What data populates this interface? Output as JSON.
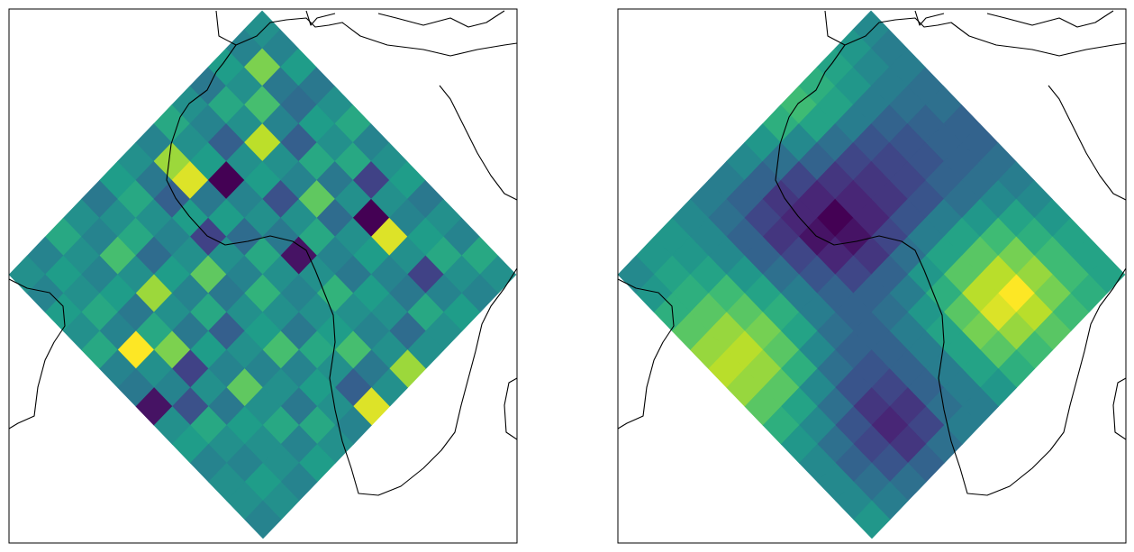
{
  "chart_data": [
    {
      "type": "heatmap",
      "colormap": "viridis",
      "values": [
        [
          0.5,
          0.45,
          0.55,
          0.4,
          0.5,
          0.6,
          0.45,
          0.5,
          0.55,
          0.4,
          0.5,
          0.45,
          0.6,
          0.5
        ],
        [
          0.45,
          0.8,
          0.4,
          0.35,
          0.55,
          0.5,
          0.6,
          0.2,
          0.5,
          0.45,
          0.55,
          0.6,
          0.5,
          0.45
        ],
        [
          0.55,
          0.5,
          0.7,
          0.45,
          0.3,
          0.6,
          0.4,
          0.5,
          0.0,
          0.95,
          0.5,
          0.2,
          0.45,
          0.55
        ],
        [
          0.4,
          0.6,
          0.5,
          0.9,
          0.5,
          0.45,
          0.75,
          0.35,
          0.5,
          0.55,
          0.45,
          0.4,
          0.6,
          0.5
        ],
        [
          0.5,
          0.45,
          0.3,
          0.5,
          0.55,
          0.25,
          0.5,
          0.6,
          0.45,
          0.4,
          0.55,
          0.5,
          0.35,
          0.5
        ],
        [
          0.6,
          0.5,
          0.55,
          0.0,
          0.45,
          0.5,
          0.4,
          0.05,
          0.5,
          0.65,
          0.5,
          0.45,
          0.5,
          0.85
        ],
        [
          0.45,
          0.85,
          0.95,
          0.4,
          0.55,
          0.35,
          0.6,
          0.5,
          0.45,
          0.5,
          0.55,
          0.7,
          0.4,
          0.5
        ],
        [
          0.5,
          0.4,
          0.3,
          0.55,
          0.2,
          0.5,
          0.45,
          0.65,
          0.5,
          0.4,
          0.6,
          0.5,
          0.3,
          0.95
        ],
        [
          0.55,
          0.6,
          0.5,
          0.45,
          0.5,
          0.75,
          0.4,
          0.5,
          0.55,
          0.7,
          0.45,
          0.55,
          0.5,
          0.45
        ],
        [
          0.4,
          0.5,
          0.6,
          0.35,
          0.55,
          0.45,
          0.6,
          0.3,
          0.5,
          0.45,
          0.5,
          0.4,
          0.6,
          0.5
        ],
        [
          0.5,
          0.45,
          0.7,
          0.5,
          0.85,
          0.5,
          0.4,
          0.55,
          0.45,
          0.75,
          0.5,
          0.6,
          0.45,
          0.55
        ],
        [
          0.6,
          0.5,
          0.45,
          0.55,
          0.4,
          0.6,
          0.8,
          0.2,
          0.5,
          0.4,
          0.55,
          0.5,
          0.5,
          0.45
        ],
        [
          0.45,
          0.55,
          0.5,
          0.6,
          0.45,
          1.0,
          0.5,
          0.45,
          0.25,
          0.6,
          0.5,
          0.45,
          0.55,
          0.5
        ],
        [
          0.5,
          0.45,
          0.55,
          0.5,
          0.6,
          0.45,
          0.4,
          0.05,
          0.5,
          0.55,
          0.45,
          0.5,
          0.5,
          0.45
        ]
      ]
    },
    {
      "type": "heatmap",
      "colormap": "viridis",
      "values": [
        [
          0.5,
          0.45,
          0.45,
          0.4,
          0.4,
          0.35,
          0.35,
          0.4,
          0.45,
          0.5,
          0.55,
          0.6,
          0.6,
          0.6
        ],
        [
          0.55,
          0.5,
          0.45,
          0.4,
          0.35,
          0.35,
          0.35,
          0.4,
          0.5,
          0.6,
          0.65,
          0.7,
          0.7,
          0.65
        ],
        [
          0.6,
          0.55,
          0.45,
          0.35,
          0.3,
          0.3,
          0.35,
          0.4,
          0.55,
          0.7,
          0.8,
          0.85,
          0.8,
          0.7
        ],
        [
          0.65,
          0.6,
          0.45,
          0.3,
          0.25,
          0.25,
          0.3,
          0.45,
          0.6,
          0.75,
          0.9,
          1.0,
          0.9,
          0.75
        ],
        [
          0.7,
          0.6,
          0.4,
          0.25,
          0.2,
          0.2,
          0.3,
          0.45,
          0.6,
          0.75,
          0.9,
          0.95,
          0.85,
          0.7
        ],
        [
          0.65,
          0.5,
          0.35,
          0.2,
          0.15,
          0.15,
          0.25,
          0.4,
          0.55,
          0.65,
          0.75,
          0.8,
          0.75,
          0.65
        ],
        [
          0.55,
          0.4,
          0.25,
          0.15,
          0.05,
          0.1,
          0.2,
          0.35,
          0.45,
          0.55,
          0.6,
          0.6,
          0.6,
          0.55
        ],
        [
          0.5,
          0.35,
          0.2,
          0.15,
          0.1,
          0.15,
          0.25,
          0.35,
          0.4,
          0.45,
          0.45,
          0.45,
          0.45,
          0.45
        ],
        [
          0.45,
          0.35,
          0.25,
          0.2,
          0.25,
          0.3,
          0.35,
          0.35,
          0.35,
          0.35,
          0.35,
          0.35,
          0.4,
          0.45
        ],
        [
          0.45,
          0.4,
          0.35,
          0.35,
          0.4,
          0.45,
          0.45,
          0.4,
          0.35,
          0.3,
          0.25,
          0.2,
          0.25,
          0.4
        ],
        [
          0.5,
          0.5,
          0.5,
          0.55,
          0.6,
          0.65,
          0.6,
          0.5,
          0.4,
          0.3,
          0.2,
          0.15,
          0.2,
          0.35
        ],
        [
          0.55,
          0.55,
          0.6,
          0.7,
          0.75,
          0.8,
          0.75,
          0.65,
          0.5,
          0.4,
          0.3,
          0.25,
          0.3,
          0.4
        ],
        [
          0.55,
          0.6,
          0.65,
          0.75,
          0.85,
          0.9,
          0.85,
          0.75,
          0.6,
          0.5,
          0.4,
          0.35,
          0.4,
          0.45
        ],
        [
          0.5,
          0.55,
          0.65,
          0.75,
          0.85,
          0.9,
          0.85,
          0.75,
          0.65,
          0.55,
          0.5,
          0.5,
          0.5,
          0.55
        ]
      ]
    }
  ]
}
